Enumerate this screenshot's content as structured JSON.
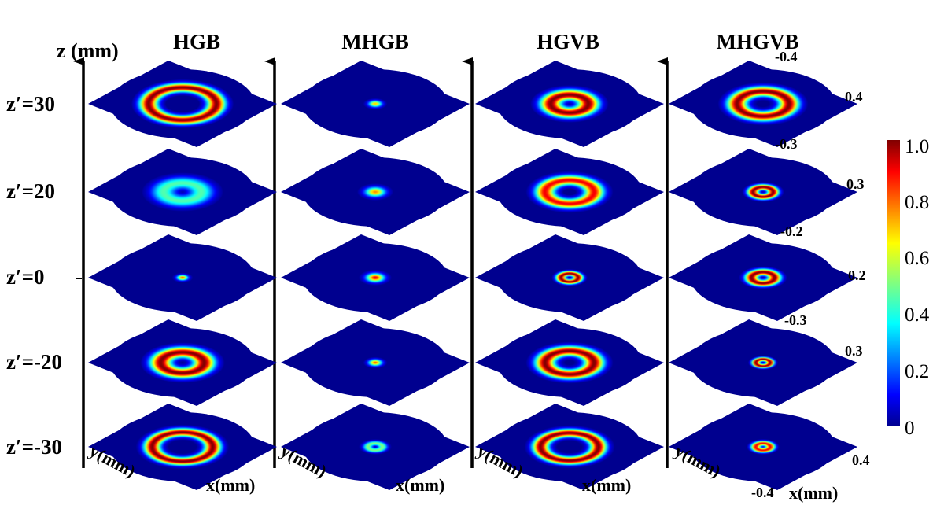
{
  "figure": {
    "z_axis_label": "z (mm)",
    "columns": [
      "HGB",
      "MHGB",
      "HGVB",
      "MHGVB"
    ],
    "rows": [
      "z′=30",
      "z′=20",
      "z′=0",
      "z′=-20",
      "z′=-30"
    ],
    "x_axis_label": "x(mm)",
    "y_axis_label": "y(mm)",
    "mhgvb_extents": [
      {
        "row": "z′=30",
        "near_corner": "-0.4",
        "far_corner": "0.4"
      },
      {
        "row": "z′=20",
        "near_corner": "-0.3",
        "far_corner": "0.3"
      },
      {
        "row": "z′=0",
        "near_corner": "-0.2",
        "far_corner": "0.2"
      },
      {
        "row": "z′=-20",
        "near_corner": "-0.3",
        "far_corner": "0.3"
      },
      {
        "row": "z′=-30",
        "near_corner": "-0.4",
        "far_corner": "0.4"
      }
    ],
    "colorbar": {
      "ticks": [
        "1.0",
        "0.8",
        "0.6",
        "0.4",
        "0.2",
        "0"
      ],
      "range": [
        0,
        1
      ],
      "colormap": "jet"
    },
    "background_color": "#00008f",
    "intensity_patterns": [
      [
        {
          "type": "ring",
          "radius": 0.47,
          "width": 0.22,
          "peak": 1.0
        },
        {
          "type": "spot",
          "radius": 0.06,
          "peak": 0.7
        },
        {
          "type": "ring",
          "radius": 0.26,
          "width": 0.26,
          "peak": 1.0
        },
        {
          "type": "ring",
          "radius": 0.36,
          "width": 0.24,
          "peak": 1.0
        }
      ],
      [
        {
          "type": "ring",
          "radius": 0.26,
          "width": 0.3,
          "peak": 0.45
        },
        {
          "type": "spot",
          "radius": 0.09,
          "peak": 0.75
        },
        {
          "type": "ring",
          "radius": 0.34,
          "width": 0.24,
          "peak": 0.9
        },
        {
          "type": "ring",
          "radius": 0.14,
          "width": 0.14,
          "peak": 1.0
        }
      ],
      [
        {
          "type": "spot",
          "radius": 0.05,
          "peak": 0.8
        },
        {
          "type": "spot",
          "radius": 0.08,
          "peak": 0.9
        },
        {
          "type": "ring",
          "radius": 0.12,
          "width": 0.12,
          "peak": 1.0
        },
        {
          "type": "ring",
          "radius": 0.16,
          "width": 0.16,
          "peak": 1.0
        }
      ],
      [
        {
          "type": "ring",
          "radius": 0.3,
          "width": 0.26,
          "peak": 1.0
        },
        {
          "type": "spot",
          "radius": 0.06,
          "peak": 0.8
        },
        {
          "type": "ring",
          "radius": 0.34,
          "width": 0.24,
          "peak": 1.0
        },
        {
          "type": "ring",
          "radius": 0.1,
          "width": 0.1,
          "peak": 1.0
        }
      ],
      [
        {
          "type": "ring",
          "radius": 0.42,
          "width": 0.2,
          "peak": 1.0
        },
        {
          "type": "ring",
          "radius": 0.1,
          "width": 0.12,
          "peak": 0.5
        },
        {
          "type": "ring",
          "radius": 0.4,
          "width": 0.2,
          "peak": 1.0
        },
        {
          "type": "ring",
          "radius": 0.1,
          "width": 0.12,
          "peak": 0.9
        }
      ]
    ]
  }
}
